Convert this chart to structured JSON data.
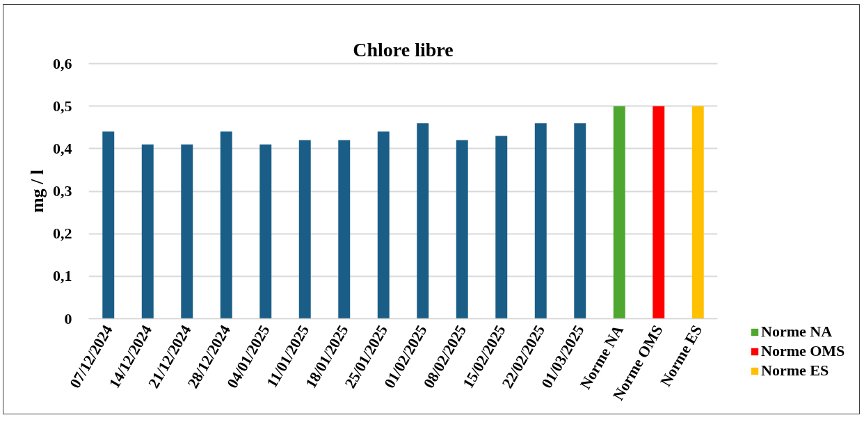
{
  "chart_data": {
    "type": "bar",
    "title": "Chlore libre",
    "ylabel": "mg / l",
    "categories": [
      "07/12/2024",
      "14/12/2024",
      "21/12/2024",
      "28/12/2024",
      "04/01/2025",
      "11/01/2025",
      "18/01/2025",
      "25/01/2025",
      "01/02/2025",
      "08/02/2025",
      "15/02/2025",
      "22/02/2025",
      "01/03/2025",
      "Norme NA",
      "Norme OMS",
      "Norme ES"
    ],
    "series": [
      {
        "color": "#1a5e87",
        "values": [
          0.44,
          0.41,
          0.41,
          0.44,
          0.41,
          0.42,
          0.42,
          0.44,
          0.46,
          0.42,
          0.43,
          0.46,
          0.46,
          null,
          null,
          null
        ]
      },
      {
        "name": "Norme NA",
        "color": "#4ea72e",
        "values": [
          null,
          null,
          null,
          null,
          null,
          null,
          null,
          null,
          null,
          null,
          null,
          null,
          null,
          0.5,
          null,
          null
        ]
      },
      {
        "name": "Norme OMS",
        "color": "#ff0000",
        "values": [
          null,
          null,
          null,
          null,
          null,
          null,
          null,
          null,
          null,
          null,
          null,
          null,
          null,
          null,
          0.5,
          null
        ]
      },
      {
        "name": "Norme ES",
        "color": "#ffc000",
        "values": [
          null,
          null,
          null,
          null,
          null,
          null,
          null,
          null,
          null,
          null,
          null,
          null,
          null,
          null,
          null,
          0.5
        ]
      }
    ],
    "stacked": true,
    "ylim": [
      0,
      0.6
    ],
    "yticks": [
      0,
      {
        "value": 0.1,
        "label": "0,1"
      },
      {
        "value": 0.2,
        "label": "0,2"
      },
      {
        "value": 0.3,
        "label": "0,3"
      },
      {
        "value": 0.4,
        "label": "0,4"
      },
      {
        "value": 0.5,
        "label": "0,5"
      },
      {
        "value": 0.6,
        "label": "0,6"
      }
    ],
    "grid": "y",
    "legend": "bottom right"
  }
}
